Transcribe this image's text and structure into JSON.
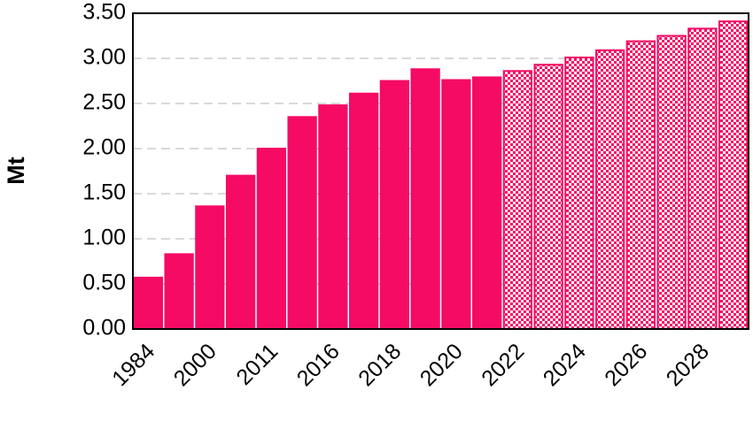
{
  "chart_data": {
    "type": "bar",
    "y_label": "Mt",
    "categories": [
      "1984",
      null,
      "2000",
      null,
      "2011",
      null,
      "2016",
      null,
      "2018",
      null,
      "2020",
      null,
      "2022",
      null,
      "2024",
      null,
      "2026",
      null,
      "2028",
      null
    ],
    "values": [
      0.57,
      0.83,
      1.36,
      1.7,
      2.0,
      2.35,
      2.48,
      2.61,
      2.75,
      2.88,
      2.76,
      2.79,
      2.86,
      2.93,
      3.01,
      3.09,
      3.19,
      3.25,
      3.33,
      3.41
    ],
    "color": "#f50a64",
    "hatched_from": "2022",
    "ylim": [
      0,
      3.5
    ],
    "yticks": [
      {
        "value": 0,
        "label": "0.00"
      },
      {
        "value": 0.5,
        "label": "0.50"
      },
      {
        "value": 1,
        "label": "1.00"
      },
      {
        "value": 1.5,
        "label": "1.50"
      },
      {
        "value": 2,
        "label": "2.00"
      },
      {
        "value": 2.5,
        "label": "2.50"
      },
      {
        "value": 3,
        "label": "3.00"
      },
      {
        "value": 3.5,
        "label": "3.50"
      }
    ],
    "grid": true
  }
}
